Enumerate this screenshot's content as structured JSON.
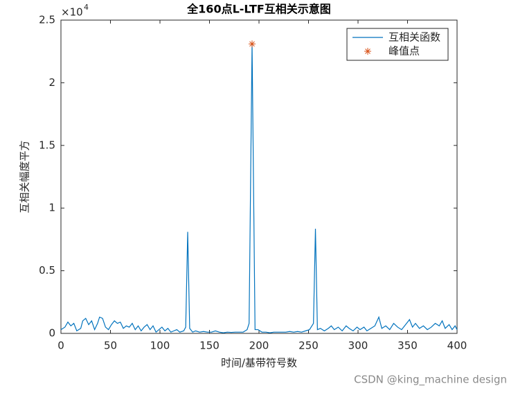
{
  "chart_data": {
    "type": "line",
    "title": "全160点L-LTF互相关示意图",
    "x_label": "时间/基带符号数",
    "y_label": "互相关幅度平方",
    "y_multiplier": "×10",
    "y_multiplier_exponent": "4",
    "xlim": [
      0,
      400
    ],
    "xticks": [
      0,
      50,
      100,
      150,
      200,
      250,
      300,
      350,
      400
    ],
    "ylim": [
      0,
      25000
    ],
    "yticks": [
      0,
      {
        "value": 5000,
        "label": "0.5"
      },
      {
        "value": 10000,
        "label": "1"
      },
      {
        "value": 15000,
        "label": "1.5"
      },
      {
        "value": 20000,
        "label": "2"
      },
      {
        "value": 25000,
        "label": "2.5"
      }
    ],
    "legend_position": "upper right",
    "grid": false,
    "series": [
      {
        "name": "互相关函数",
        "color": "#0072bd",
        "marker": "none",
        "x": [
          0,
          4,
          7,
          10,
          13,
          16,
          20,
          22,
          25,
          28,
          31,
          34,
          37,
          39,
          42,
          45,
          48,
          51,
          54,
          57,
          60,
          63,
          66,
          69,
          72,
          75,
          78,
          81,
          84,
          87,
          90,
          93,
          96,
          99,
          102,
          105,
          108,
          111,
          114,
          117,
          120,
          124,
          126,
          128,
          130,
          133,
          136,
          140,
          144,
          148,
          152,
          156,
          160,
          164,
          168,
          172,
          176,
          180,
          184,
          188,
          190,
          193,
          196,
          199,
          203,
          207,
          211,
          215,
          219,
          223,
          227,
          231,
          235,
          239,
          243,
          247,
          251,
          255,
          257,
          259,
          262,
          266,
          270,
          273,
          276,
          280,
          284,
          288,
          291,
          295,
          299,
          302,
          306,
          309,
          313,
          317,
          321,
          324,
          328,
          332,
          336,
          340,
          344,
          348,
          352,
          355,
          358,
          362,
          366,
          370,
          374,
          378,
          382,
          385,
          388,
          392,
          395,
          398,
          400
        ],
        "values": [
          300,
          500,
          900,
          600,
          800,
          200,
          400,
          1000,
          1200,
          700,
          1000,
          300,
          800,
          1300,
          1200,
          500,
          300,
          700,
          1000,
          800,
          900,
          400,
          600,
          500,
          800,
          300,
          600,
          200,
          500,
          700,
          300,
          600,
          100,
          300,
          500,
          200,
          400,
          100,
          200,
          300,
          100,
          200,
          500,
          8100,
          400,
          100,
          200,
          100,
          150,
          100,
          100,
          200,
          100,
          50,
          100,
          80,
          100,
          100,
          100,
          300,
          800,
          23100,
          300,
          300,
          100,
          100,
          50,
          100,
          100,
          100,
          100,
          150,
          100,
          150,
          100,
          200,
          300,
          800,
          8350,
          300,
          400,
          200,
          400,
          600,
          300,
          500,
          200,
          600,
          400,
          200,
          500,
          300,
          500,
          200,
          400,
          600,
          1300,
          400,
          600,
          300,
          800,
          500,
          300,
          700,
          1100,
          500,
          800,
          400,
          600,
          300,
          500,
          800,
          600,
          1000,
          400,
          700,
          300,
          600,
          300
        ]
      },
      {
        "name": "峰值点",
        "color": "#d95319",
        "marker": "*",
        "x": [
          193
        ],
        "values": [
          23100
        ]
      }
    ]
  },
  "watermark": "CSDN @king_machine design"
}
